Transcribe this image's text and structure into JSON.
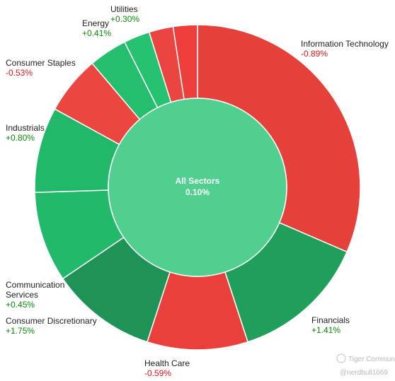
{
  "chart_data": {
    "type": "pie",
    "subtype": "donut",
    "center": {
      "label": "All Sectors",
      "value": "0.10%",
      "color": "#50cf8f"
    },
    "series": [
      {
        "label": "Information Technology",
        "change": "-0.89%",
        "weight": 31.5,
        "color": "#e5403a"
      },
      {
        "label": "Financials",
        "change": "+1.41%",
        "weight": 13.5,
        "color": "#1f9f5a"
      },
      {
        "label": "Health Care",
        "change": "-0.59%",
        "weight": 10.0,
        "color": "#e9403c"
      },
      {
        "label": "Consumer Discretionary",
        "change": "+1.75%",
        "weight": 10.5,
        "color": "#1e9355"
      },
      {
        "label": "Communication Services",
        "change": "+0.45%",
        "weight": 9.0,
        "color": "#22b96b"
      },
      {
        "label": "Industrials",
        "change": "+0.80%",
        "weight": 8.5,
        "color": "#22b86a"
      },
      {
        "label": "Consumer Staples",
        "change": "-0.53%",
        "weight": 5.8,
        "color": "#eb4640"
      },
      {
        "label": "Energy",
        "change": "+0.41%",
        "weight": 3.8,
        "color": "#25bd6e"
      },
      {
        "label": "Utilities",
        "change": "+0.30%",
        "weight": 2.6,
        "color": "#27c271"
      },
      {
        "label": "",
        "change": "",
        "weight": 2.4,
        "color": "#ea4540"
      },
      {
        "label": "",
        "change": "",
        "weight": 2.4,
        "color": "#ec3f3c"
      }
    ],
    "positive_color": "#0a8a0a",
    "negative_color": "#e0161b"
  },
  "watermark": {
    "brand": "Tiger Community",
    "user": "@nerdbull1669"
  }
}
